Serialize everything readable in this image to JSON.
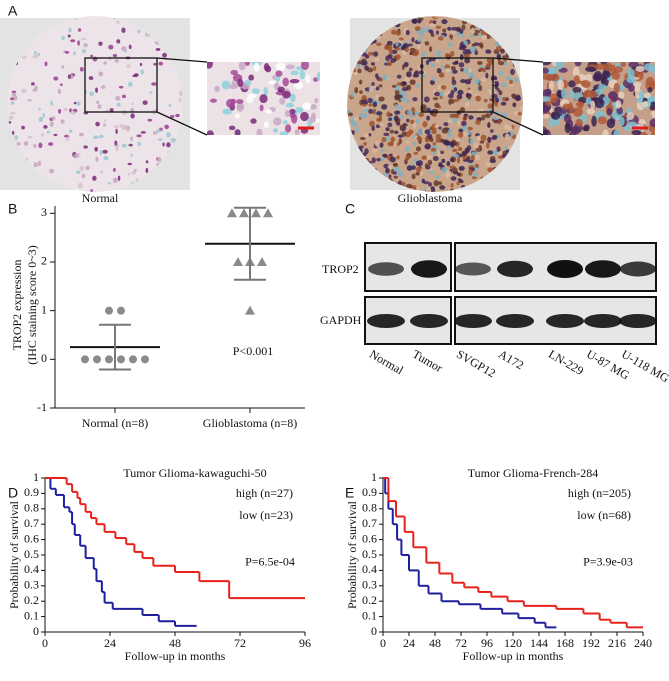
{
  "panel_labels": [
    "A",
    "B",
    "C",
    "D",
    "E"
  ],
  "ihc": {
    "labels": [
      "Normal",
      "Glioblastoma"
    ]
  },
  "blot": {
    "proteins": [
      "TROP2",
      "GAPDH"
    ],
    "lanes": [
      "Normal",
      "Tumor",
      "SVGP12",
      "A172",
      "LN-229",
      "U-87 MG",
      "U-118 MG"
    ]
  },
  "chart_data": [
    {
      "type": "dot",
      "ylabel": [
        "TROP2 expression",
        "(IHC staining score 0~3)"
      ],
      "ylim": [
        -1,
        3.15
      ],
      "yticks": [
        -1,
        0,
        1,
        2,
        3
      ],
      "categories": [
        "Normal (n=8)",
        "Glioblastoma (n=8)"
      ],
      "groups": [
        {
          "marker": "circle",
          "color": "#8a8a8a",
          "values": [
            1,
            1,
            0,
            0,
            0,
            0,
            0,
            0
          ],
          "mean": 0.25,
          "sd": 0.46
        },
        {
          "marker": "triangle",
          "color": "#8a8a8a",
          "values": [
            3,
            3,
            3,
            3,
            2,
            2,
            2,
            1
          ],
          "mean": 2.375,
          "sd": 0.74
        }
      ],
      "annotation": "P<0.001"
    },
    {
      "type": "survival",
      "title": "Tumor Glioma-kawaguchi-50",
      "xlabel": "Follow-up in months",
      "ylabel": "Probability of survival",
      "xlim": [
        0,
        96
      ],
      "xticks": [
        0,
        24,
        48,
        72,
        96
      ],
      "ylim": [
        0,
        1
      ],
      "yticks": [
        0,
        0.1,
        0.2,
        0.3,
        0.4,
        0.5,
        0.6,
        0.7,
        0.8,
        0.9,
        1
      ],
      "series": [
        {
          "name": "high (n=27)",
          "color": "#1f1f9e",
          "x": [
            0,
            2,
            4,
            7,
            9,
            10,
            11,
            13,
            15,
            18,
            19,
            21,
            22,
            25,
            36,
            42,
            48,
            56
          ],
          "values": [
            1,
            0.93,
            0.89,
            0.81,
            0.78,
            0.7,
            0.63,
            0.56,
            0.48,
            0.41,
            0.33,
            0.26,
            0.19,
            0.15,
            0.11,
            0.07,
            0.04,
            0.04
          ]
        },
        {
          "name": "low (n=23)",
          "color": "#e8211b",
          "x": [
            0,
            8,
            10,
            12,
            13,
            15,
            17,
            19,
            22,
            26,
            30,
            33,
            36,
            40,
            48,
            57,
            68,
            96
          ],
          "values": [
            1,
            0.96,
            0.91,
            0.87,
            0.83,
            0.78,
            0.74,
            0.7,
            0.65,
            0.61,
            0.57,
            0.52,
            0.48,
            0.43,
            0.39,
            0.33,
            0.22,
            0.22
          ]
        }
      ],
      "annotation": "P=6.5e-04"
    },
    {
      "type": "survival",
      "title": "Tumor Glioma-French-284",
      "xlabel": "Follow-up in months",
      "ylabel": "Probability of survival",
      "xlim": [
        0,
        240
      ],
      "xticks": [
        0,
        24,
        48,
        72,
        96,
        120,
        144,
        168,
        192,
        216,
        240
      ],
      "ylim": [
        0,
        1
      ],
      "yticks": [
        0,
        0.1,
        0.2,
        0.3,
        0.4,
        0.5,
        0.6,
        0.7,
        0.8,
        0.9,
        1
      ],
      "series": [
        {
          "name": "high (n=205)",
          "color": "#1f1f9e",
          "x": [
            0,
            2,
            5,
            9,
            13,
            17,
            24,
            33,
            42,
            54,
            70,
            90,
            110,
            125,
            140,
            150,
            160
          ],
          "values": [
            1,
            0.9,
            0.8,
            0.7,
            0.6,
            0.5,
            0.4,
            0.3,
            0.25,
            0.2,
            0.18,
            0.15,
            0.12,
            0.09,
            0.06,
            0.03,
            0.03
          ]
        },
        {
          "name": "low (n=68)",
          "color": "#e8211b",
          "x": [
            0,
            5,
            12,
            20,
            28,
            40,
            52,
            64,
            75,
            88,
            100,
            115,
            130,
            160,
            185,
            200,
            210,
            225,
            240
          ],
          "values": [
            1,
            0.85,
            0.75,
            0.65,
            0.55,
            0.45,
            0.38,
            0.32,
            0.29,
            0.26,
            0.23,
            0.2,
            0.17,
            0.15,
            0.12,
            0.08,
            0.06,
            0.03,
            0.03
          ]
        }
      ],
      "annotation": "P=3.9e-03"
    }
  ]
}
